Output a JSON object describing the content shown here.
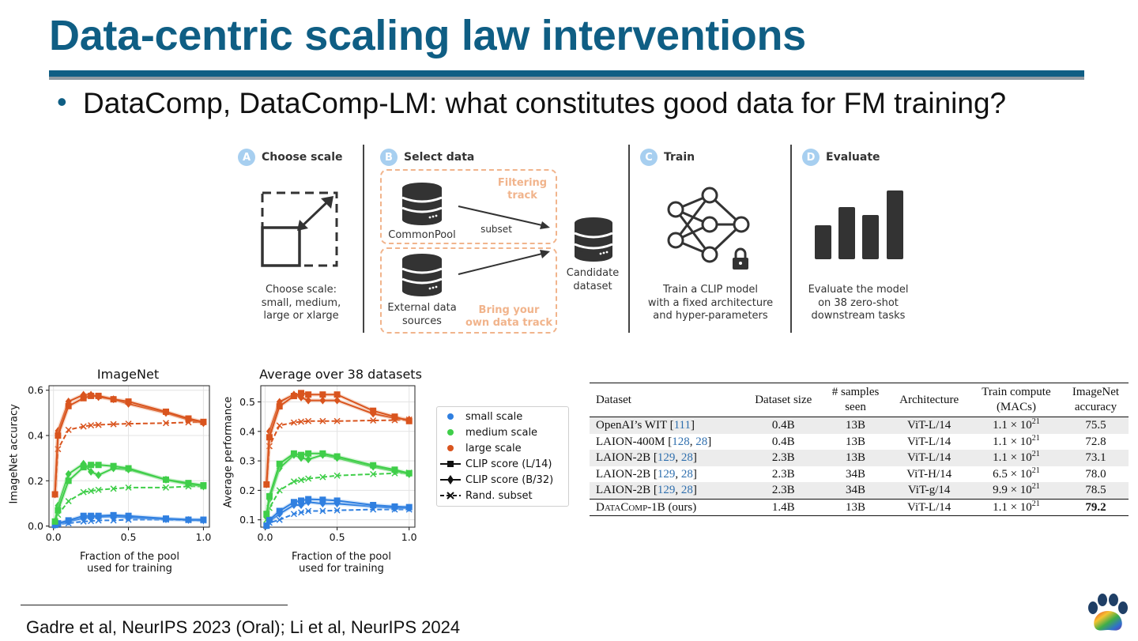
{
  "slide": {
    "title": "Data-centric scaling law interventions",
    "bullet": "DataComp, DataComp-LM: what constitutes good data for FM training?",
    "footer": "Gadre et al, NeurIPS 2023 (Oral); Li et al, NeurIPS 2024"
  },
  "pipeline": {
    "steps": [
      {
        "badge": "A",
        "label": "Choose scale",
        "caption": [
          "Choose scale:",
          "small, medium,",
          "large or xlarge"
        ]
      },
      {
        "badge": "B",
        "label": "Select data"
      },
      {
        "badge": "C",
        "label": "Train",
        "caption": [
          "Train a CLIP model",
          "with a fixed architecture",
          "and hyper-parameters"
        ]
      },
      {
        "badge": "D",
        "label": "Evaluate",
        "caption": [
          "Evaluate the model",
          "on 38 zero-shot",
          "downstream tasks"
        ]
      }
    ],
    "commonpool_label": "CommonPool",
    "external_label": [
      "External data",
      "sources"
    ],
    "subset_label": "subset",
    "filtering_track": [
      "Filtering",
      "track"
    ],
    "byod_track": [
      "Bring your",
      "own data track"
    ],
    "candidate": [
      "Candidate",
      "dataset"
    ],
    "icons": [
      "resize-square-icon",
      "database-icon",
      "neural-network-icon",
      "lock-icon",
      "bar-chart-icon"
    ],
    "colors": {
      "badge": "#a7cff0",
      "track": "#f1b48c",
      "icon": "#333333"
    }
  },
  "chart_data": [
    {
      "type": "line",
      "title": "ImageNet",
      "xlabel": [
        "Fraction of the pool",
        "used for training"
      ],
      "ylabel": "ImageNet accuracy",
      "xlim": [
        -0.03,
        1.04
      ],
      "ylim": [
        -0.005,
        0.62
      ],
      "xticks": [
        0.0,
        0.5,
        1.0
      ],
      "xtick_labels": [
        "0.0",
        "0.5",
        "1.0"
      ],
      "yticks": [
        0.0,
        0.2,
        0.4,
        0.6
      ],
      "ytick_labels": [
        "0.0",
        "0.2",
        "0.4",
        "0.6"
      ],
      "grid": true,
      "x": [
        0.01,
        0.03,
        0.1,
        0.2,
        0.25,
        0.3,
        0.4,
        0.5,
        0.75,
        0.9,
        1.0
      ],
      "series": [
        {
          "scale": "small",
          "method": "clip_l14",
          "values": [
            0.005,
            0.012,
            0.025,
            0.045,
            0.045,
            0.045,
            0.048,
            0.045,
            0.033,
            0.028,
            0.028
          ]
        },
        {
          "scale": "small",
          "method": "clip_b32",
          "values": [
            0.005,
            0.01,
            0.02,
            0.035,
            0.04,
            0.04,
            0.042,
            0.038,
            0.03,
            0.027,
            0.025
          ]
        },
        {
          "scale": "small",
          "method": "random",
          "values": [
            0.005,
            0.008,
            0.012,
            0.02,
            0.022,
            0.025,
            0.025,
            0.028,
            0.028,
            0.026,
            0.025
          ]
        },
        {
          "scale": "medium",
          "method": "clip_l14",
          "values": [
            0.02,
            0.07,
            0.2,
            0.26,
            0.27,
            0.27,
            0.265,
            0.255,
            0.205,
            0.19,
            0.18
          ]
        },
        {
          "scale": "medium",
          "method": "clip_b32",
          "values": [
            0.02,
            0.09,
            0.23,
            0.275,
            0.24,
            0.225,
            0.255,
            0.25,
            0.205,
            0.185,
            0.175
          ]
        },
        {
          "scale": "medium",
          "method": "random",
          "values": [
            0.02,
            0.05,
            0.11,
            0.15,
            0.155,
            0.16,
            0.165,
            0.17,
            0.17,
            0.175,
            0.175
          ]
        },
        {
          "scale": "large",
          "method": "clip_l14",
          "values": [
            0.14,
            0.4,
            0.53,
            0.565,
            0.575,
            0.575,
            0.56,
            0.55,
            0.505,
            0.475,
            0.46
          ]
        },
        {
          "scale": "large",
          "method": "clip_b32",
          "values": [
            0.14,
            0.42,
            0.55,
            0.58,
            0.58,
            0.57,
            0.56,
            0.54,
            0.5,
            0.47,
            0.455
          ]
        },
        {
          "scale": "large",
          "method": "random",
          "values": [
            0.14,
            0.34,
            0.425,
            0.44,
            0.445,
            0.447,
            0.45,
            0.452,
            0.455,
            0.458,
            0.46
          ]
        }
      ]
    },
    {
      "type": "line",
      "title": "Average over 38 datasets",
      "xlabel": [
        "Fraction of the pool",
        "used for training"
      ],
      "ylabel": "Average performance",
      "xlim": [
        -0.03,
        1.04
      ],
      "ylim": [
        0.075,
        0.555
      ],
      "xticks": [
        0.0,
        0.5,
        1.0
      ],
      "xtick_labels": [
        "0.0",
        "0.5",
        "1.0"
      ],
      "yticks": [
        0.1,
        0.2,
        0.3,
        0.4,
        0.5
      ],
      "ytick_labels": [
        "0.1",
        "0.2",
        "0.3",
        "0.4",
        "0.5"
      ],
      "grid": true,
      "x": [
        0.01,
        0.03,
        0.1,
        0.2,
        0.25,
        0.3,
        0.4,
        0.5,
        0.75,
        0.9,
        1.0
      ],
      "series": [
        {
          "scale": "small",
          "method": "clip_l14",
          "values": [
            0.08,
            0.1,
            0.13,
            0.16,
            0.165,
            0.17,
            0.168,
            0.165,
            0.15,
            0.145,
            0.143
          ]
        },
        {
          "scale": "small",
          "method": "clip_b32",
          "values": [
            0.08,
            0.095,
            0.12,
            0.15,
            0.15,
            0.16,
            0.155,
            0.155,
            0.145,
            0.14,
            0.14
          ]
        },
        {
          "scale": "small",
          "method": "random",
          "values": [
            0.08,
            0.09,
            0.1,
            0.12,
            0.125,
            0.13,
            0.13,
            0.132,
            0.135,
            0.135,
            0.135
          ]
        },
        {
          "scale": "medium",
          "method": "clip_l14",
          "values": [
            0.12,
            0.18,
            0.29,
            0.325,
            0.32,
            0.325,
            0.325,
            0.315,
            0.285,
            0.27,
            0.258
          ]
        },
        {
          "scale": "medium",
          "method": "clip_b32",
          "values": [
            0.11,
            0.17,
            0.275,
            0.32,
            0.31,
            0.305,
            0.32,
            0.31,
            0.28,
            0.265,
            0.255
          ]
        },
        {
          "scale": "medium",
          "method": "random",
          "values": [
            0.1,
            0.14,
            0.2,
            0.23,
            0.235,
            0.24,
            0.245,
            0.25,
            0.255,
            0.258,
            0.26
          ]
        },
        {
          "scale": "large",
          "method": "clip_l14",
          "values": [
            0.22,
            0.38,
            0.485,
            0.52,
            0.53,
            0.525,
            0.525,
            0.525,
            0.47,
            0.45,
            0.435
          ]
        },
        {
          "scale": "large",
          "method": "clip_b32",
          "values": [
            0.22,
            0.4,
            0.5,
            0.525,
            0.515,
            0.505,
            0.505,
            0.505,
            0.46,
            0.445,
            0.44
          ]
        },
        {
          "scale": "large",
          "method": "random",
          "values": [
            0.22,
            0.35,
            0.42,
            0.43,
            0.433,
            0.435,
            0.435,
            0.435,
            0.437,
            0.438,
            0.44
          ]
        }
      ]
    }
  ],
  "legend": {
    "items": [
      {
        "label": "small scale",
        "kind": "dot",
        "color": "#2f7fe0"
      },
      {
        "label": "medium scale",
        "kind": "dot",
        "color": "#3fce49"
      },
      {
        "label": "large scale",
        "kind": "dot",
        "color": "#d9541e"
      },
      {
        "label": "CLIP score (L/14)",
        "kind": "square-solid"
      },
      {
        "label": "CLIP score (B/32)",
        "kind": "diamond-solid"
      },
      {
        "label": "Rand. subset",
        "kind": "x-dashed"
      }
    ]
  },
  "series_colors": {
    "small": "#2f7fe0",
    "medium": "#3fce49",
    "large": "#d9541e"
  },
  "series_colors_light": {
    "small": "#8fbcf0",
    "medium": "#97e39c",
    "large": "#eaa27f"
  },
  "table": {
    "headers": [
      [
        "Dataset"
      ],
      [
        "Dataset size"
      ],
      [
        "# samples",
        "seen"
      ],
      [
        "Architecture"
      ],
      [
        "Train compute",
        "(MACs)"
      ],
      [
        "ImageNet",
        "accuracy"
      ]
    ],
    "rows": [
      {
        "name": "OpenAI’s WIT",
        "refs": [
          "111"
        ],
        "size": "0.4B",
        "seen": "13B",
        "arch": "ViT-L/14",
        "compute_base": "1.1 × 10",
        "compute_exp": "21",
        "acc": "75.5",
        "shaded": true
      },
      {
        "name": "LAION-400M",
        "refs": [
          "128",
          "28"
        ],
        "size": "0.4B",
        "seen": "13B",
        "arch": "ViT-L/14",
        "compute_base": "1.1 × 10",
        "compute_exp": "21",
        "acc": "72.8",
        "shaded": false
      },
      {
        "name": "LAION-2B",
        "refs": [
          "129",
          "28"
        ],
        "size": "2.3B",
        "seen": "13B",
        "arch": "ViT-L/14",
        "compute_base": "1.1 × 10",
        "compute_exp": "21",
        "acc": "73.1",
        "shaded": true
      },
      {
        "name": "LAION-2B",
        "refs": [
          "129",
          "28"
        ],
        "size": "2.3B",
        "seen": "34B",
        "arch": "ViT-H/14",
        "compute_base": "6.5 × 10",
        "compute_exp": "21",
        "acc": "78.0",
        "shaded": false
      },
      {
        "name": "LAION-2B",
        "refs": [
          "129",
          "28"
        ],
        "size": "2.3B",
        "seen": "34B",
        "arch": "ViT-g/14",
        "compute_base": "9.9 × 10",
        "compute_exp": "21",
        "acc": "78.5",
        "shaded": true
      }
    ],
    "final_row": {
      "name_sc": "DataComp",
      "name_rest": "-1B (ours)",
      "size": "1.4B",
      "seen": "13B",
      "arch": "ViT-L/14",
      "compute_base": "1.1 × 10",
      "compute_exp": "21",
      "acc": "79.2"
    }
  },
  "logo": {
    "icon": "paw-logo-icon"
  }
}
